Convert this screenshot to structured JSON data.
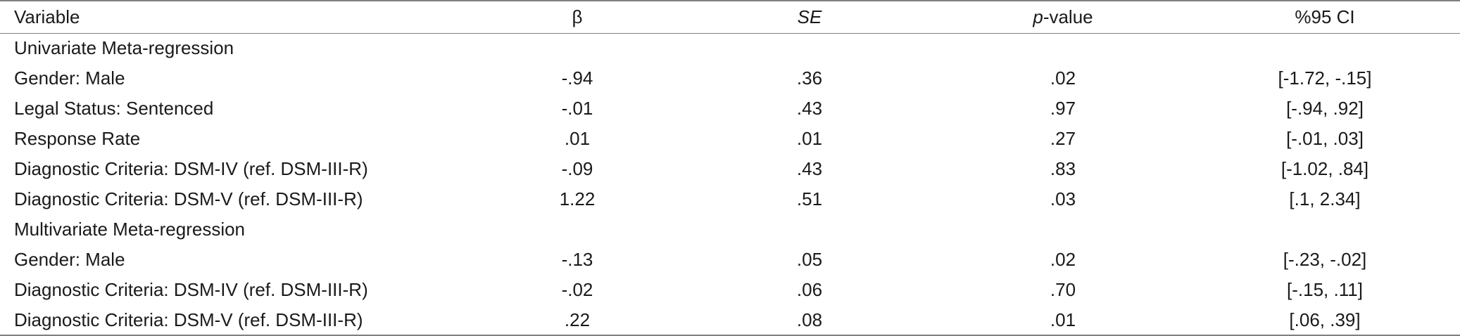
{
  "headers": {
    "variable": "Variable",
    "beta": "β",
    "se": "SE",
    "p_value_italic": "p",
    "p_value_suffix": "-value",
    "ci": "%95 CI"
  },
  "rows": [
    {
      "type": "section",
      "label": "Univariate Meta-regression"
    },
    {
      "type": "data",
      "variable": "Gender: Male",
      "beta": "-.94",
      "se": ".36",
      "p": ".02",
      "ci": "[-1.72, -.15]"
    },
    {
      "type": "data",
      "variable": "Legal Status: Sentenced",
      "beta": "-.01",
      "se": ".43",
      "p": ".97",
      "ci": "[-.94, .92]"
    },
    {
      "type": "data",
      "variable": "Response Rate",
      "beta": ".01",
      "se": ".01",
      "p": ".27",
      "ci": "[-.01, .03]"
    },
    {
      "type": "data",
      "variable": "Diagnostic Criteria: DSM-IV (ref. DSM-III-R)",
      "beta": "-.09",
      "se": ".43",
      "p": ".83",
      "ci": "[-1.02, .84]"
    },
    {
      "type": "data",
      "variable": "Diagnostic Criteria: DSM-V (ref. DSM-III-R)",
      "beta": "1.22",
      "se": ".51",
      "p": ".03",
      "ci": "[.1, 2.34]"
    },
    {
      "type": "section",
      "label": "Multivariate Meta-regression"
    },
    {
      "type": "data",
      "variable": "Gender: Male",
      "beta": "-.13",
      "se": ".05",
      "p": ".02",
      "ci": "[-.23, -.02]"
    },
    {
      "type": "data",
      "variable": "Diagnostic Criteria: DSM-IV (ref. DSM-III-R)",
      "beta": "-.02",
      "se": ".06",
      "p": ".70",
      "ci": "[-.15, .11]"
    },
    {
      "type": "data",
      "variable": "Diagnostic Criteria: DSM-V (ref. DSM-III-R)",
      "beta": ".22",
      "se": ".08",
      "p": ".01",
      "ci": "[.06, .39]"
    }
  ]
}
